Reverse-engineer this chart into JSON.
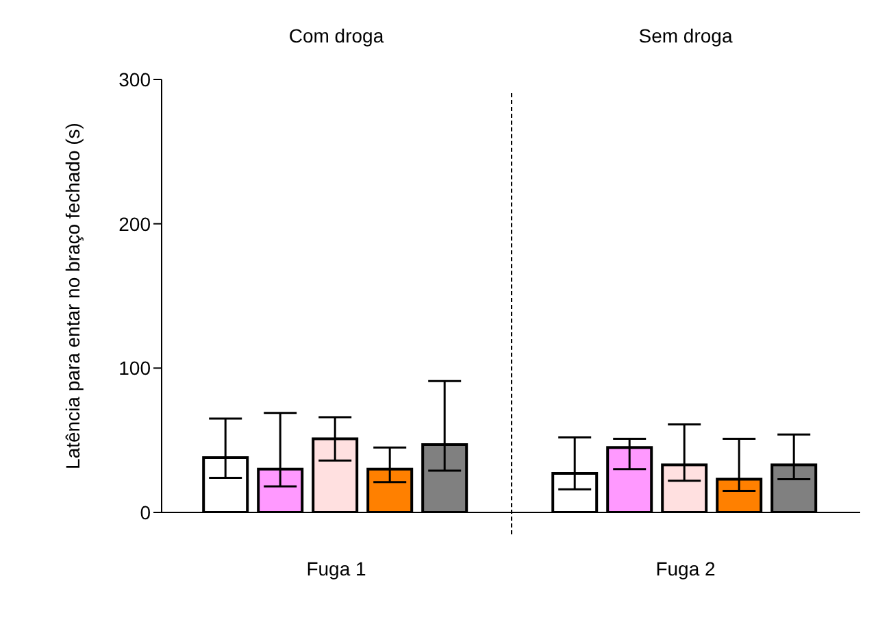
{
  "chart_data": {
    "type": "bar",
    "ylabel": "Latência para entar no braço fechado (s)",
    "categories": [
      "Fuga 1",
      "Fuga 2"
    ],
    "series": [
      {
        "color": "#ffffff",
        "values": [
          38,
          27
        ],
        "errors": [
          [
            24,
            65
          ],
          [
            16,
            52
          ]
        ]
      },
      {
        "color": "#ff99ff",
        "values": [
          30,
          45
        ],
        "errors": [
          [
            18,
            69
          ],
          [
            30,
            51
          ]
        ]
      },
      {
        "color": "#ffe0e0",
        "values": [
          51,
          33
        ],
        "errors": [
          [
            36,
            66
          ],
          [
            22,
            61
          ]
        ]
      },
      {
        "color": "#ff8000",
        "values": [
          30,
          23
        ],
        "errors": [
          [
            21,
            45
          ],
          [
            15,
            51
          ]
        ]
      },
      {
        "color": "#808080",
        "values": [
          47,
          33
        ],
        "errors": [
          [
            29,
            91
          ],
          [
            23,
            54
          ]
        ]
      }
    ],
    "ylim": [
      0,
      300
    ],
    "yticks": [
      0,
      100,
      200,
      300
    ],
    "grid": false,
    "annotations": [
      "Com droga",
      "Sem droga"
    ]
  }
}
